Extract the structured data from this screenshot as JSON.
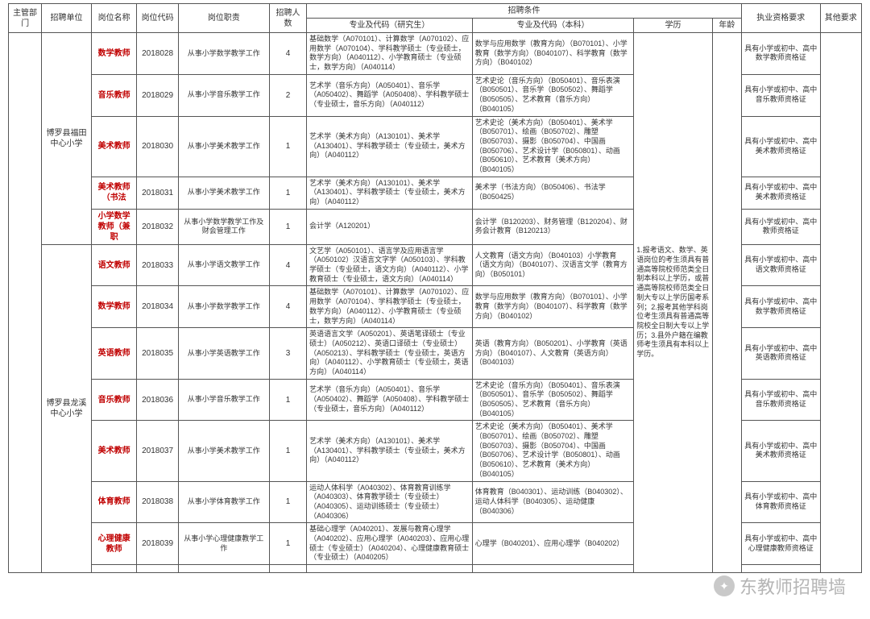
{
  "headers": {
    "dept": "主管部门",
    "unit": "招聘单位",
    "post_name": "岗位名称",
    "post_code": "岗位代码",
    "duties": "岗位职责",
    "count": "招聘人数",
    "conditions": "招聘条件",
    "major_grad": "专业及代码（研究生）",
    "major_undergrad": "专业及代码（本科）",
    "edu": "学历",
    "age": "年龄",
    "license": "执业资格要求",
    "other": "其他要求"
  },
  "units": [
    {
      "name": "博罗县福田中心小学",
      "rows": 5
    },
    {
      "name": "博罗县龙溪中心小学",
      "rows": 7
    }
  ],
  "edu_merged": "1.报考语文、数学、英语岗位的考生须具有普通高等院校师范类全日制本科以上学历，或普通高等院校师范类全日制大专以上学历国考系列；2.报考其他学科岗位考生须具有普通高等院校全日制大专以上学历；3.县外户籍在编教师考生须具有本科以上学历。",
  "rows": [
    {
      "post_name": "数学教师",
      "post_code": "2018028",
      "duties": "从事小学数学教学工作",
      "count": "4",
      "grad": "基础数学（A070101）、计算数学（A070102）、应用数学（A070104）、学科教学硕士（专业硕士，数学方向）（A040112）、小学教育硕士（专业硕士，数学方向）（A040114）",
      "undergrad": "数学与应用数学（教育方向）（B070101）、小学教育（数学方向）（B040107）、科学教育（数学方向）（B040102）",
      "license": "具有小学或初中、高中数学教师资格证",
      "red": true
    },
    {
      "post_name": "音乐教师",
      "post_code": "2018029",
      "duties": "从事小学音乐教学工作",
      "count": "2",
      "grad": "艺术学（音乐方向）（A050401）、音乐学（A050402）、舞蹈学（A050408）、学科教学硕士（专业硕士，音乐方向）（A040112）",
      "undergrad": "艺术史论（音乐方向）（B050401）、音乐表演（B050501）、音乐学（B050502）、舞蹈学（B050505）、艺术教育（音乐方向）（B040105）",
      "license": "具有小学或初中、高中音乐教师资格证",
      "red": true
    },
    {
      "post_name": "美术教师",
      "post_code": "2018030",
      "duties": "从事小学美术教学工作",
      "count": "1",
      "grad": "艺术学（美术方向）（A130101）、美术学（A130401）、学科教学硕士（专业硕士，美术方向）（A040112）",
      "undergrad": "艺术史论（美术方向）（B050401）、美术学（B050701）、绘画（B050702）、雕塑（B050703）、摄影（B050704）、中国画（B050706）、艺术设计学（B050801）、动画（B050610）、艺术教育（美术方向）（B040105）",
      "license": "具有小学或初中、高中美术教师资格证",
      "red": true
    },
    {
      "post_name": "美术教师（书法",
      "post_code": "2018031",
      "duties": "从事小学美术教学工作",
      "count": "1",
      "grad": "艺术学（美术方向）（A130101）、美术学（A130401）、学科教学硕士（专业硕士，美术方向）（A040112）",
      "undergrad": "美术学（书法方向）（B050406）、书法学（B050425）",
      "license": "具有小学或初中、高中美术教师资格证",
      "red": true
    },
    {
      "post_name": "小学数学教师（兼职",
      "post_code": "2018032",
      "duties": "从事小学数学教学工作及财会管理工作",
      "count": "1",
      "grad": "会计学（A120201）",
      "undergrad": "会计学（B120203）、财务管理（B120204）、财务会计教育（B120213）",
      "license": "具有小学或初中、高中教师资格证",
      "red": true
    },
    {
      "post_name": "语文教师",
      "post_code": "2018033",
      "duties": "从事小学语文教学工作",
      "count": "4",
      "grad": "文艺学（A050101）、语言学及应用语言学（A050102）汉语言文字学（A050103）、学科教学硕士（专业硕士，语文方向）（A040112）、小学教育硕士（专业硕士，语文方向）（A040114）",
      "undergrad": "人文教育（语文方向）（B040103）小学教育（语文方向）（B040107）、汉语言文学（教育方向）（B050101）",
      "license": "具有小学或初中、高中语文教师资格证",
      "red": true
    },
    {
      "post_name": "数学教师",
      "post_code": "2018034",
      "duties": "从事小学数学教学工作",
      "count": "4",
      "grad": "基础数学（A070101）、计算数学（A070102）、应用数学（A070104）、学科教学硕士（专业硕士，数学方向）（A040112）、小学教育硕士（专业硕士，数学方向）（A040114）",
      "undergrad": "数学与应用数学（教育方向）（B070101）、小学教育（数学方向）（B040107）、科学教育（数学方向）（B040102）",
      "license": "具有小学或初中、高中数学教师资格证",
      "red": true
    },
    {
      "post_name": "英语教师",
      "post_code": "2018035",
      "duties": "从事小学英语教学工作",
      "count": "3",
      "grad": "英语语言文学（A050201）、英语笔译硕士（专业硕士）（A050212）、英语口译硕士（专业硕士）（A050213）、学科教学硕士（专业硕士，英语方向）（A040112）、小学教育硕士（专业硕士，英语方向）（A040114）",
      "undergrad": "英语（教育方向）（B050201）、小学教育（英语方向）（B040107）、人文教育（英语方向）（B040103）",
      "license": "具有小学或初中、高中英语教师资格证",
      "red": true
    },
    {
      "post_name": "音乐教师",
      "post_code": "2018036",
      "duties": "从事小学音乐教学工作",
      "count": "1",
      "grad": "艺术学（音乐方向）（A050401）、音乐学（A050402）、舞蹈学（A050408）、学科教学硕士（专业硕士，音乐方向）（A040112）",
      "undergrad": "艺术史论（音乐方向）（B050401）、音乐表演（B050501）、音乐学（B050502）、舞蹈学（B050505）、艺术教育（音乐方向）（B040105）",
      "license": "具有小学或初中、高中音乐教师资格证",
      "red": true
    },
    {
      "post_name": "美术教师",
      "post_code": "2018037",
      "duties": "从事小学美术教学工作",
      "count": "1",
      "grad": "艺术学（美术方向）（A130101）、美术学（A130401）、学科教学硕士（专业硕士，美术方向）（A040112）",
      "undergrad": "艺术史论（美术方向）（B050401）、美术学（B050701）、绘画（B050702）、雕塑（B050703）、摄影（B050704）、中国画（B050706）、艺术设计学（B050801）、动画（B050610）、艺术教育（美术方向）（B040105）",
      "license": "具有小学或初中、高中美术教师资格证",
      "red": true
    },
    {
      "post_name": "体育教师",
      "post_code": "2018038",
      "duties": "从事小学体育教学工作",
      "count": "1",
      "grad": "运动人体科学（A040302）、体育教育训练学（A040303）、体育教学硕士（专业硕士）（A040305）、运动训练硕士（专业硕士）（A040306）",
      "undergrad": "体育教育（B040301）、运动训练（B040302）、运动人体科学（B040305）、运动健康（B040306）",
      "license": "具有小学或初中、高中体育教师资格证",
      "red": true
    },
    {
      "post_name": "心理健康教师",
      "post_code": "2018039",
      "duties": "从事小学心理健康教学工作",
      "count": "1",
      "grad": "基础心理学（A040201）、发展与教育心理学（A040202）、应用心理学（A040203）、应用心理硕士（专业硕士）（A040204）、心理健康教育硕士（专业硕士）（A040205）",
      "undergrad": "心理学（B040201）、应用心理学（B040202）",
      "license": "具有小学或初中、高中心理健康教师资格证",
      "red": true
    }
  ],
  "watermark": "东教师招聘墙"
}
